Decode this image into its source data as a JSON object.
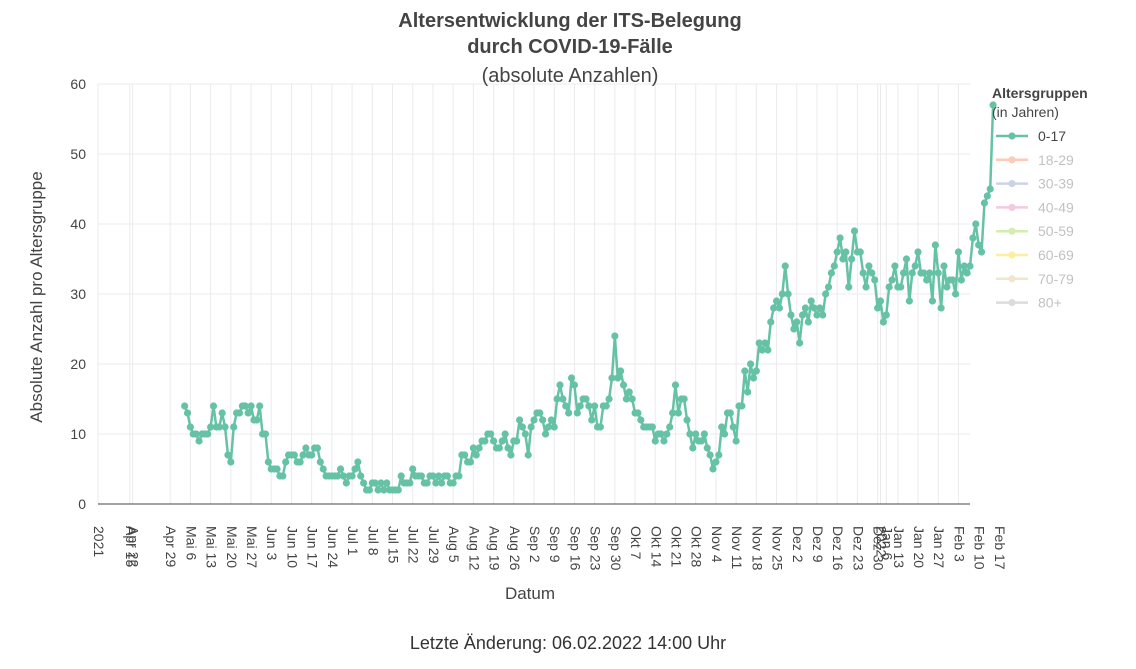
{
  "chart_data": {
    "type": "line",
    "title_line1": "Altersentwicklung der ITS-Belegung",
    "title_line2": "durch COVID-19-Fälle",
    "subtitle": "(absolute Anzahlen)",
    "xlabel": "Datum",
    "ylabel": "Absolute Anzahl pro Altersgruppe",
    "ylim": [
      0,
      60
    ],
    "yticks": [
      0,
      10,
      20,
      30,
      40,
      50,
      60
    ],
    "xlim_days": [
      -11,
      291
    ],
    "xticks": [
      {
        "day": -11,
        "label": "2021"
      },
      {
        "day": 0,
        "label": "Apr 15"
      },
      {
        "day": 1,
        "label": "Apr 22"
      },
      {
        "day": 14,
        "label": "Apr 29"
      },
      {
        "day": 21,
        "label": "Mai 6"
      },
      {
        "day": 28,
        "label": "Mai 13"
      },
      {
        "day": 35,
        "label": "Mai 20"
      },
      {
        "day": 42,
        "label": "Mai 27"
      },
      {
        "day": 49,
        "label": "Jun 3"
      },
      {
        "day": 56,
        "label": "Jun 10"
      },
      {
        "day": 63,
        "label": "Jun 17"
      },
      {
        "day": 70,
        "label": "Jun 24"
      },
      {
        "day": 77,
        "label": "Jul 1"
      },
      {
        "day": 84,
        "label": "Jul 8"
      },
      {
        "day": 91,
        "label": "Jul 15"
      },
      {
        "day": 98,
        "label": "Jul 22"
      },
      {
        "day": 105,
        "label": "Jul 29"
      },
      {
        "day": 112,
        "label": "Aug 5"
      },
      {
        "day": 119,
        "label": "Aug 12"
      },
      {
        "day": 126,
        "label": "Aug 19"
      },
      {
        "day": 133,
        "label": "Aug 26"
      },
      {
        "day": 140,
        "label": "Sep 2"
      },
      {
        "day": 147,
        "label": "Sep 9"
      },
      {
        "day": 154,
        "label": "Sep 16"
      },
      {
        "day": 161,
        "label": "Sep 23"
      },
      {
        "day": 168,
        "label": "Sep 30"
      },
      {
        "day": 175,
        "label": "Okt 7"
      },
      {
        "day": 182,
        "label": "Okt 14"
      },
      {
        "day": 189,
        "label": "Okt 21"
      },
      {
        "day": 196,
        "label": "Okt 28"
      },
      {
        "day": 203,
        "label": "Nov 4"
      },
      {
        "day": 210,
        "label": "Nov 11"
      },
      {
        "day": 217,
        "label": "Nov 18"
      },
      {
        "day": 224,
        "label": "Nov 25"
      },
      {
        "day": 231,
        "label": "Dez 2"
      },
      {
        "day": 238,
        "label": "Dez 9"
      },
      {
        "day": 245,
        "label": "Dez 16"
      },
      {
        "day": 252,
        "label": "Dez 23"
      },
      {
        "day": 259,
        "label": "Dez 30"
      },
      {
        "day": 260,
        "label": "2022"
      },
      {
        "day": 262,
        "label": "Jan 6"
      },
      {
        "day": 266,
        "label": "Jan 13"
      },
      {
        "day": 273,
        "label": "Jan 20"
      },
      {
        "day": 280,
        "label": "Jan 27"
      },
      {
        "day": 287,
        "label": "Feb 3"
      },
      {
        "day": 294,
        "label": "Feb 10"
      },
      {
        "day": 301,
        "label": "Feb 17"
      }
    ],
    "series": [
      {
        "name": "0-17",
        "color": "#66c2a5",
        "start_day": 19,
        "values": [
          14,
          13,
          11,
          10,
          10,
          9,
          10,
          10,
          10,
          11,
          14,
          11,
          11,
          13,
          11,
          7,
          6,
          11,
          13,
          13,
          14,
          14,
          13,
          14,
          12,
          12,
          14,
          10,
          10,
          6,
          5,
          5,
          5,
          4,
          4,
          6,
          7,
          7,
          7,
          6,
          6,
          7,
          8,
          7,
          7,
          8,
          8,
          6,
          5,
          4,
          4,
          4,
          4,
          4,
          5,
          4,
          3,
          4,
          4,
          5,
          6,
          4,
          3,
          2,
          2,
          3,
          3,
          2,
          3,
          2,
          3,
          2,
          2,
          2,
          2,
          4,
          3,
          3,
          3,
          5,
          4,
          4,
          4,
          3,
          3,
          4,
          4,
          3,
          4,
          3,
          4,
          4,
          3,
          3,
          4,
          4,
          7,
          7,
          6,
          6,
          8,
          7,
          8,
          9,
          9,
          10,
          10,
          9,
          8,
          8,
          9,
          10,
          8,
          7,
          9,
          9,
          12,
          11,
          10,
          7,
          11,
          12,
          13,
          13,
          12,
          10,
          11,
          12,
          11,
          15,
          17,
          15,
          14,
          13,
          18,
          17,
          13,
          14,
          15,
          15,
          14,
          12,
          14,
          11,
          11,
          14,
          14,
          15,
          18,
          24,
          18,
          19,
          17,
          15,
          16,
          15,
          13,
          13,
          12,
          11,
          11,
          11,
          11,
          9,
          10,
          10,
          9,
          10,
          11,
          13,
          17,
          13,
          15,
          15,
          12,
          10,
          8,
          10,
          9,
          9,
          10,
          8,
          7,
          5,
          6,
          7,
          11,
          10,
          13,
          13,
          11,
          9,
          14,
          14,
          19,
          16,
          20,
          18,
          19,
          23,
          22,
          23,
          22,
          26,
          28,
          29,
          28,
          30,
          34,
          30,
          27,
          25,
          26,
          23,
          27,
          28,
          26,
          29,
          28,
          27,
          28,
          27,
          30,
          31,
          33,
          34,
          36,
          38,
          35,
          36,
          31,
          35,
          39,
          36,
          36,
          33,
          31,
          34,
          33,
          32,
          28,
          29,
          26,
          27,
          31,
          32,
          34,
          31,
          31,
          33,
          35,
          29,
          33,
          34,
          36,
          33,
          33,
          32,
          33,
          29,
          37,
          33,
          28,
          34,
          31,
          32,
          32,
          30,
          36,
          32,
          34,
          33,
          34,
          38,
          40,
          37,
          36,
          43,
          44,
          45,
          57
        ]
      },
      {
        "name": "18-29",
        "color": "#fc8d62",
        "values": []
      },
      {
        "name": "30-39",
        "color": "#8da0cb",
        "values": []
      },
      {
        "name": "40-49",
        "color": "#e78ac3",
        "values": []
      },
      {
        "name": "50-59",
        "color": "#a6d854",
        "values": []
      },
      {
        "name": "60-69",
        "color": "#ffd92f",
        "values": []
      },
      {
        "name": "70-79",
        "color": "#e5c494",
        "values": []
      },
      {
        "name": "80+",
        "color": "#b3b3b3",
        "values": []
      }
    ]
  },
  "legend": {
    "title": "Altersgruppen",
    "subtitle": "(in Jahren)",
    "active": [
      "0-17"
    ]
  },
  "footer": {
    "text": "Letzte Änderung: 06.02.2022 14:00 Uhr"
  }
}
